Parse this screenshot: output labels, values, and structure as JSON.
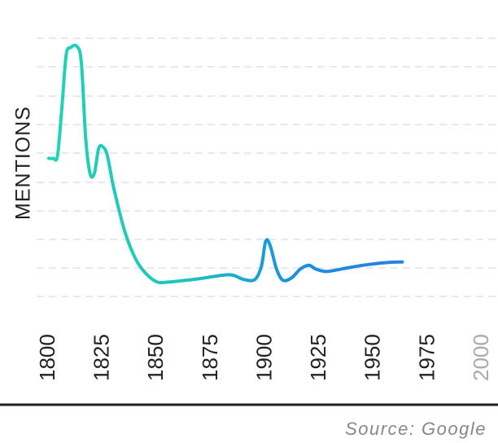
{
  "chart_data": {
    "type": "line",
    "ylabel": "MENTIONS",
    "xlabel": "",
    "x_ticks": [
      "1800",
      "1825",
      "1850",
      "1875",
      "1900",
      "1925",
      "1950",
      "1975",
      "2000"
    ],
    "muted_ticks": [
      "2000"
    ],
    "xlim": [
      1800,
      2000
    ],
    "grid": true,
    "gradient_colors": [
      "#22d4b4",
      "#1a7fe0",
      "#bcd6f7"
    ],
    "series": [
      {
        "points": [
          {
            "x": 1800,
            "y": 5.2
          },
          {
            "x": 1802,
            "y": 5.2
          },
          {
            "x": 1804,
            "y": 5.3
          },
          {
            "x": 1806,
            "y": 7.2
          },
          {
            "x": 1808,
            "y": 9.3
          },
          {
            "x": 1810,
            "y": 9.6
          },
          {
            "x": 1813,
            "y": 9.65
          },
          {
            "x": 1815,
            "y": 9.0
          },
          {
            "x": 1817,
            "y": 6.0
          },
          {
            "x": 1819,
            "y": 4.6
          },
          {
            "x": 1821,
            "y": 4.6
          },
          {
            "x": 1823,
            "y": 5.6
          },
          {
            "x": 1825,
            "y": 5.65
          },
          {
            "x": 1827,
            "y": 5.3
          },
          {
            "x": 1830,
            "y": 4.0
          },
          {
            "x": 1835,
            "y": 2.3
          },
          {
            "x": 1840,
            "y": 1.2
          },
          {
            "x": 1845,
            "y": 0.6
          },
          {
            "x": 1850,
            "y": 0.28
          },
          {
            "x": 1855,
            "y": 0.28
          },
          {
            "x": 1860,
            "y": 0.32
          },
          {
            "x": 1870,
            "y": 0.42
          },
          {
            "x": 1880,
            "y": 0.55
          },
          {
            "x": 1885,
            "y": 0.55
          },
          {
            "x": 1890,
            "y": 0.38
          },
          {
            "x": 1895,
            "y": 0.38
          },
          {
            "x": 1898,
            "y": 0.9
          },
          {
            "x": 1900,
            "y": 1.9
          },
          {
            "x": 1902,
            "y": 1.75
          },
          {
            "x": 1905,
            "y": 0.8
          },
          {
            "x": 1908,
            "y": 0.35
          },
          {
            "x": 1912,
            "y": 0.45
          },
          {
            "x": 1916,
            "y": 0.8
          },
          {
            "x": 1920,
            "y": 0.95
          },
          {
            "x": 1923,
            "y": 0.8
          },
          {
            "x": 1928,
            "y": 0.7
          },
          {
            "x": 1935,
            "y": 0.8
          },
          {
            "x": 1945,
            "y": 0.95
          },
          {
            "x": 1955,
            "y": 1.05
          },
          {
            "x": 1963,
            "y": 1.08
          }
        ]
      }
    ]
  },
  "footer": {
    "source": "Source: Google"
  }
}
